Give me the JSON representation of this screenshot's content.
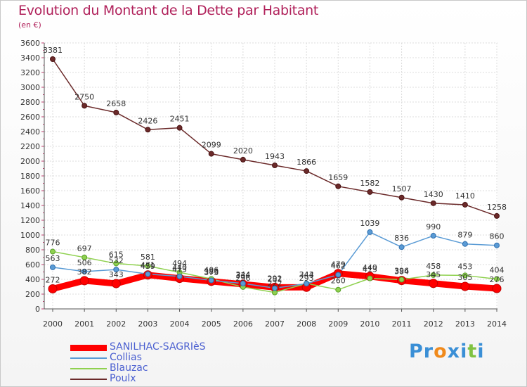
{
  "title": "Evolution du Montant de la Dette par Habitant",
  "subtitle": "(en €)",
  "logo": {
    "parts": [
      "Pr",
      "o",
      "x",
      "i",
      "t",
      "i"
    ],
    "colors": [
      "#3a8fd6",
      "#f08a1c",
      "#3a8fd6",
      "#3a8fd6",
      "#7fc241",
      "#3a8fd6"
    ]
  },
  "chart_data": {
    "type": "line",
    "title": "Evolution du Montant de la Dette par Habitant",
    "ylabel": "(en €)",
    "xlabel": "",
    "ylim": [
      0,
      3600
    ],
    "yticks": [
      0,
      200,
      400,
      600,
      800,
      1000,
      1200,
      1400,
      1600,
      1800,
      2000,
      2200,
      2400,
      2600,
      2800,
      3000,
      3200,
      3400,
      3600
    ],
    "x": [
      "2000",
      "2001",
      "2002",
      "2003",
      "2004",
      "2005",
      "2006",
      "2007",
      "2008",
      "2009",
      "2010",
      "2011",
      "2012",
      "2013",
      "2014"
    ],
    "grid": true,
    "legend_position": "bottom-left",
    "series": [
      {
        "name": "SANILHAC-SAGRIèS",
        "color": "#ff0000",
        "values": [
          272,
          382,
          343,
          459,
          413,
          373,
          334,
          292,
          293,
          479,
          440,
          384,
          345,
          305,
          276
        ]
      },
      {
        "name": "Collias",
        "color": "#5a9bd5",
        "values": [
          563,
          506,
          532,
          471,
          440,
          386,
          344,
          281,
          343,
          462,
          1039,
          836,
          990,
          879,
          860
        ]
      },
      {
        "name": "Blauzac",
        "color": "#8fd14f",
        "values": [
          776,
          697,
          615,
          581,
          494,
          406,
          296,
          222,
          344,
          260,
          413,
          396,
          458,
          453,
          404
        ]
      },
      {
        "name": "Poulx",
        "color": "#6b2a2a",
        "values": [
          3381,
          2750,
          2658,
          2426,
          2451,
          2099,
          2020,
          1943,
          1866,
          1659,
          1582,
          1507,
          1430,
          1410,
          1258
        ]
      }
    ]
  }
}
